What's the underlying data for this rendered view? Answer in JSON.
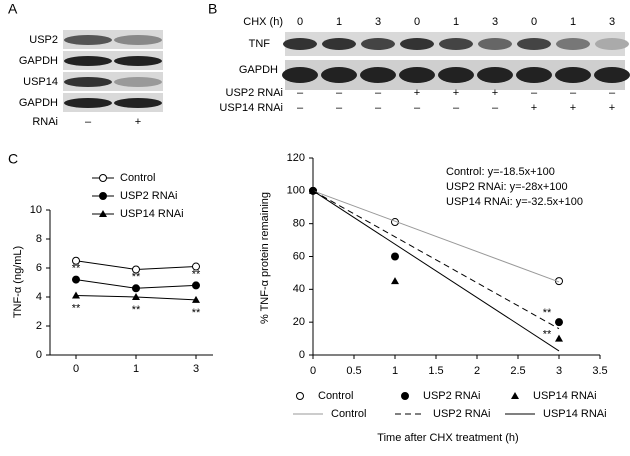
{
  "panel_a": {
    "label": "A",
    "rows": [
      "USP2",
      "GAPDH",
      "USP14",
      "GAPDH"
    ],
    "rnai_label": "RNAi",
    "lanes": [
      "–",
      "+"
    ]
  },
  "panel_b": {
    "label": "B",
    "cond_label": "CHX (h)",
    "chx": [
      "0",
      "1",
      "3",
      "0",
      "1",
      "3",
      "0",
      "1",
      "3"
    ],
    "rows": [
      "TNF",
      "GAPDH"
    ],
    "usp2_label": "USP2 RNAi",
    "usp2": [
      "–",
      "–",
      "–",
      "+",
      "+",
      "+",
      "–",
      "–",
      "–"
    ],
    "usp14_label": "USP14 RNAi",
    "usp14": [
      "–",
      "–",
      "–",
      "–",
      "–",
      "–",
      "+",
      "+",
      "+"
    ]
  },
  "chart_data": [
    {
      "type": "line",
      "panel_label": "C",
      "ylabel": "TNF-α (ng/mL)",
      "categories": [
        "0",
        "1",
        "3"
      ],
      "ylim": [
        0,
        10
      ],
      "yticks": [
        0,
        2,
        4,
        6,
        8,
        10
      ],
      "series": [
        {
          "name": "Control",
          "marker": "open-circle",
          "color": "#000000",
          "values": [
            6.5,
            5.9,
            6.1
          ]
        },
        {
          "name": "USP2 RNAi",
          "marker": "circle",
          "color": "#000000",
          "values": [
            5.2,
            4.6,
            4.8
          ],
          "significance": [
            "**",
            "**",
            "**"
          ]
        },
        {
          "name": "USP14 RNAi",
          "marker": "triangle",
          "color": "#000000",
          "values": [
            4.1,
            4.0,
            3.8
          ],
          "significance": [
            "**",
            "**",
            "**"
          ]
        }
      ]
    },
    {
      "type": "line",
      "ylabel": "% TNF-α protein remaining",
      "xlabel": "Time after CHX treatment (h)",
      "xlim": [
        0,
        3.5
      ],
      "xticks": [
        0,
        0.5,
        1,
        1.5,
        2,
        2.5,
        3,
        3.5
      ],
      "ylim": [
        0,
        120
      ],
      "yticks": [
        0,
        20,
        40,
        60,
        80,
        100,
        120
      ],
      "equations": [
        "Control: y=-18.5x+100",
        "USP2 RNAi: y=-28x+100",
        "USP14 RNAi: y=-32.5x+100"
      ],
      "series": [
        {
          "name": "Control",
          "marker": "open-circle",
          "color": "#000000",
          "x": [
            0,
            1,
            3
          ],
          "values": [
            100,
            81,
            45
          ]
        },
        {
          "name": "USP2 RNAi",
          "marker": "circle",
          "color": "#000000",
          "x": [
            0,
            1,
            3
          ],
          "values": [
            100,
            60,
            20
          ],
          "significance": [
            null,
            null,
            "**"
          ]
        },
        {
          "name": "USP14 RNAi",
          "marker": "triangle",
          "color": "#000000",
          "x": [
            0,
            1,
            3
          ],
          "values": [
            100,
            45,
            10
          ],
          "significance": [
            null,
            null,
            "**"
          ]
        },
        {
          "name": "Control",
          "line_style": "solid",
          "color": "#999999",
          "x": [
            0,
            3
          ],
          "values": [
            100,
            44.5
          ]
        },
        {
          "name": "USP2 RNAi",
          "line_style": "dash",
          "color": "#000000",
          "x": [
            0,
            3
          ],
          "values": [
            100,
            16
          ]
        },
        {
          "name": "USP14 RNAi",
          "line_style": "solid",
          "color": "#000000",
          "x": [
            0,
            3
          ],
          "values": [
            100,
            2.5
          ]
        }
      ]
    }
  ]
}
